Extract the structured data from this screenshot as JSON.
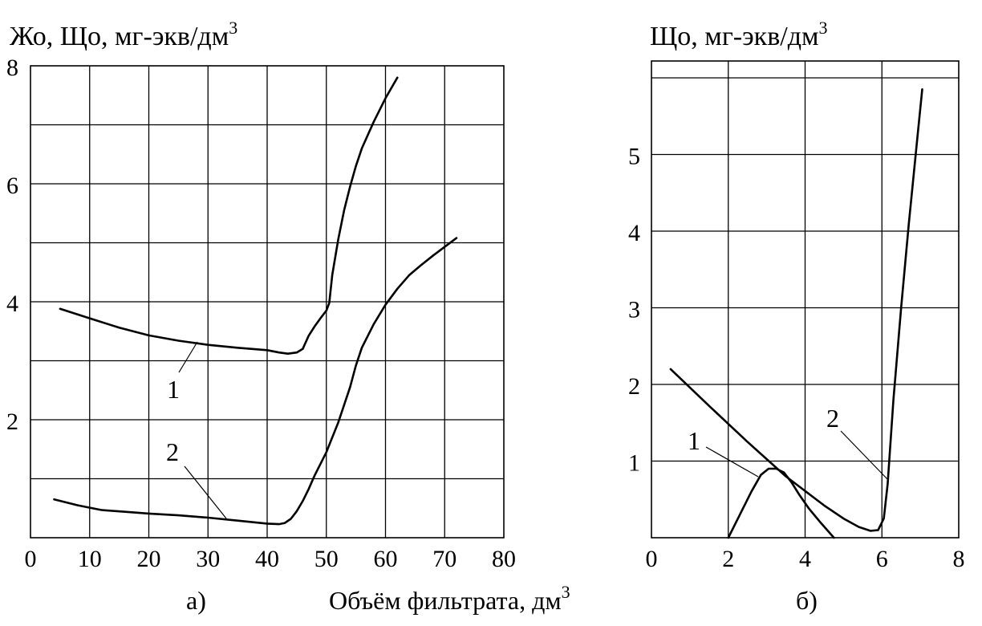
{
  "chart_data": [
    {
      "type": "line",
      "panel_label": "а)",
      "ylabel": "Жо, Що, мг-экв/дм",
      "ylabel_sup": "3",
      "xlim": [
        0,
        80
      ],
      "ylim": [
        0,
        8
      ],
      "x_ticks": [
        "0",
        "10",
        "20",
        "30",
        "40",
        "50",
        "60",
        "70",
        "80"
      ],
      "y_ticks": [
        "2",
        "4",
        "6",
        "8"
      ],
      "grid": true,
      "series": [
        {
          "name": "1",
          "x": [
            5,
            10,
            15,
            20,
            25,
            30,
            35,
            40,
            42,
            43.5,
            45,
            46,
            47,
            48,
            49,
            50,
            50.5,
            51,
            52,
            53,
            54,
            55,
            56,
            58,
            60,
            62
          ],
          "y": [
            3.88,
            3.72,
            3.56,
            3.43,
            3.34,
            3.27,
            3.22,
            3.18,
            3.14,
            3.12,
            3.14,
            3.2,
            3.42,
            3.58,
            3.72,
            3.85,
            3.98,
            4.45,
            5.05,
            5.55,
            5.95,
            6.3,
            6.6,
            7.05,
            7.45,
            7.8
          ]
        },
        {
          "name": "2",
          "x": [
            4,
            8,
            12,
            16,
            20,
            25,
            30,
            35,
            40,
            42,
            43,
            44,
            45,
            46,
            47,
            48,
            50,
            52,
            54,
            55,
            56,
            58,
            60,
            62,
            64,
            66,
            68,
            70,
            72
          ],
          "y": [
            0.65,
            0.55,
            0.47,
            0.44,
            0.41,
            0.38,
            0.34,
            0.29,
            0.24,
            0.23,
            0.25,
            0.32,
            0.45,
            0.62,
            0.82,
            1.05,
            1.45,
            1.95,
            2.55,
            2.92,
            3.22,
            3.62,
            3.95,
            4.22,
            4.45,
            4.62,
            4.78,
            4.93,
            5.08
          ]
        }
      ]
    },
    {
      "type": "line",
      "panel_label": "б)",
      "ylabel": "Що, мг-экв/дм",
      "ylabel_sup": "3",
      "xlim": [
        0,
        8
      ],
      "ylim": [
        0,
        6
      ],
      "x_ticks": [
        "0",
        "2",
        "4",
        "6",
        "8"
      ],
      "y_ticks": [
        "1",
        "2",
        "3",
        "4",
        "5"
      ],
      "grid": true,
      "series": [
        {
          "name": "1",
          "x": [
            2.0,
            2.3,
            2.6,
            2.85,
            3.05,
            3.25,
            3.45,
            3.65,
            3.85,
            4.1,
            4.4,
            4.75
          ],
          "y": [
            0.0,
            0.3,
            0.6,
            0.82,
            0.9,
            0.9,
            0.85,
            0.72,
            0.56,
            0.38,
            0.2,
            0.0
          ]
        },
        {
          "name": "2",
          "x": [
            0.5,
            1.5,
            2.5,
            3.5,
            4.5,
            5.0,
            5.4,
            5.7,
            5.9,
            6.05,
            6.15,
            6.3,
            6.5,
            6.7,
            6.9,
            7.05
          ],
          "y": [
            2.2,
            1.72,
            1.25,
            0.8,
            0.42,
            0.25,
            0.14,
            0.09,
            0.1,
            0.25,
            0.7,
            1.8,
            3.0,
            4.1,
            5.1,
            5.85
          ]
        }
      ]
    }
  ],
  "shared_xlabel": "Объём фильтрата, дм",
  "shared_xlabel_sup": "3"
}
